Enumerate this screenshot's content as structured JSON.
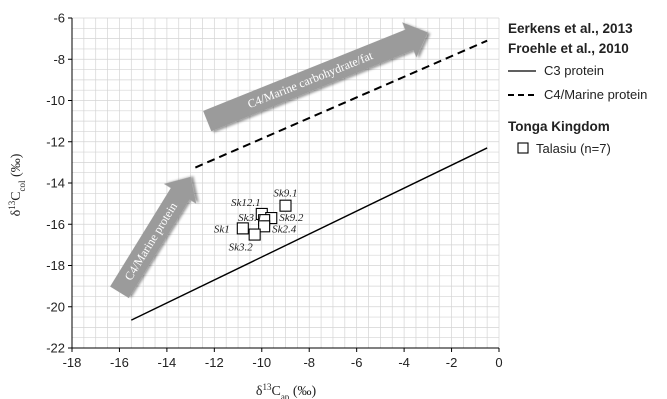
{
  "chart_data": {
    "type": "scatter",
    "xlabel": "δ13Cap (‰)",
    "ylabel": "δ13Ccol (‰)",
    "xlim": [
      -18,
      0
    ],
    "ylim": [
      -22,
      -6
    ],
    "xticks": [
      "-18",
      "-16",
      "-14",
      "-12",
      "-10",
      "-8",
      "-6",
      "-4",
      "-2",
      "0"
    ],
    "yticks": [
      "-6",
      "-8",
      "-10",
      "-12",
      "-14",
      "-16",
      "-18",
      "-20",
      "-22"
    ],
    "grid": true,
    "legend": {
      "placement": "right",
      "groups": [
        {
          "heading": [
            "Eerkens et al., 2013",
            "Froehle et al., 2010"
          ],
          "entries": [
            {
              "label": "C3 protein",
              "style": "solid"
            },
            {
              "label": "C4/Marine protein",
              "style": "dashed"
            }
          ]
        },
        {
          "heading": [
            "Tonga Kingdom"
          ],
          "entries": [
            {
              "label": "Talasiu (n=7)",
              "style": "square"
            }
          ]
        }
      ]
    },
    "lines": [
      {
        "name": "C3 protein",
        "style": "solid",
        "x": [
          -15.5,
          -0.5
        ],
        "y": [
          -20.65,
          -12.3
        ]
      },
      {
        "name": "C4/Marine protein",
        "style": "dashed",
        "x": [
          -12.8,
          -0.5
        ],
        "y": [
          -13.25,
          -7.1
        ]
      }
    ],
    "series": [
      {
        "name": "Talasiu (n=7)",
        "marker": "square",
        "points": [
          {
            "label": "Sk9.1",
            "x": -9.0,
            "y": -15.1
          },
          {
            "label": "Sk12.1",
            "x": -10.0,
            "y": -15.5
          },
          {
            "label": "Sk9.2",
            "x": -9.6,
            "y": -15.7
          },
          {
            "label": "Sk3.1",
            "x": -9.9,
            "y": -15.8
          },
          {
            "label": "Sk1",
            "x": -10.8,
            "y": -16.2
          },
          {
            "label": "Sk2.4",
            "x": -9.9,
            "y": -16.1
          },
          {
            "label": "Sk3.2",
            "x": -10.3,
            "y": -16.5
          }
        ]
      }
    ],
    "annotations": [
      {
        "text": "C4/Marine protein",
        "from": [
          -16.0,
          -19.3
        ],
        "to": [
          -13.0,
          -13.7
        ]
      },
      {
        "text": "C4/Marine carbohydrate/fat",
        "from": [
          -12.3,
          -11.0
        ],
        "to": [
          -3.0,
          -6.7
        ]
      }
    ]
  },
  "colors": {
    "background": "#ffffff",
    "grid": "#d4d4d4",
    "axis": "#000000",
    "arrow_fill": "#9b9b9b",
    "marker_fill": "#ffffff"
  }
}
